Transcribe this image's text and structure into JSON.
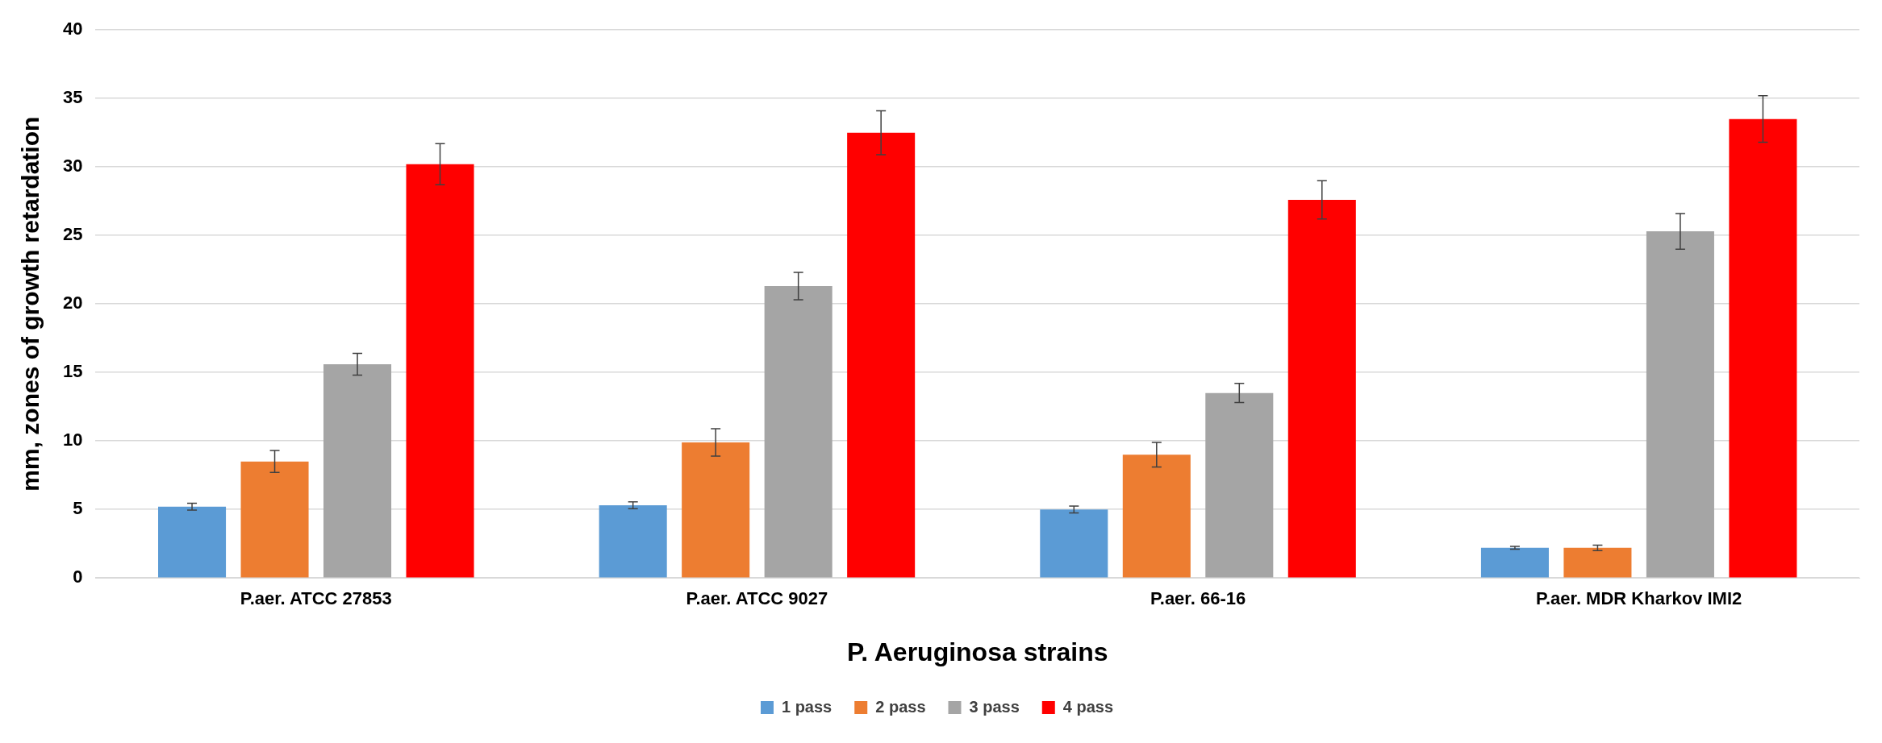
{
  "chart_data": {
    "type": "bar",
    "xlabel": "P. Aeruginosa strains",
    "ylabel": "mm, zones of growth retardation",
    "categories": [
      "P.aer. ATCC 27853",
      "P.aer. ATCC 9027",
      "P.aer. 66-16",
      "P.aer. MDR Kharkov IMI2"
    ],
    "series": [
      {
        "name": "1 pass",
        "color": "#5b9bd5",
        "values": [
          5.2,
          5.3,
          5.0,
          2.2
        ],
        "errors": [
          0.25,
          0.25,
          0.25,
          0.1
        ]
      },
      {
        "name": "2 pass",
        "color": "#ed7d31",
        "values": [
          8.5,
          9.9,
          9.0,
          2.2
        ],
        "errors": [
          0.8,
          1.0,
          0.9,
          0.2
        ]
      },
      {
        "name": "3 pass",
        "color": "#a5a5a5",
        "values": [
          15.6,
          21.3,
          13.5,
          25.3
        ],
        "errors": [
          0.8,
          1.0,
          0.7,
          1.3
        ]
      },
      {
        "name": "4 pass",
        "color": "#ff0000",
        "values": [
          30.2,
          32.5,
          27.6,
          33.5
        ],
        "errors": [
          1.5,
          1.6,
          1.4,
          1.7
        ]
      }
    ],
    "ylim": [
      0,
      40
    ],
    "yticks": [
      0,
      5,
      10,
      15,
      20,
      25,
      30,
      35,
      40
    ],
    "grid": "y",
    "legend": "bottom"
  }
}
